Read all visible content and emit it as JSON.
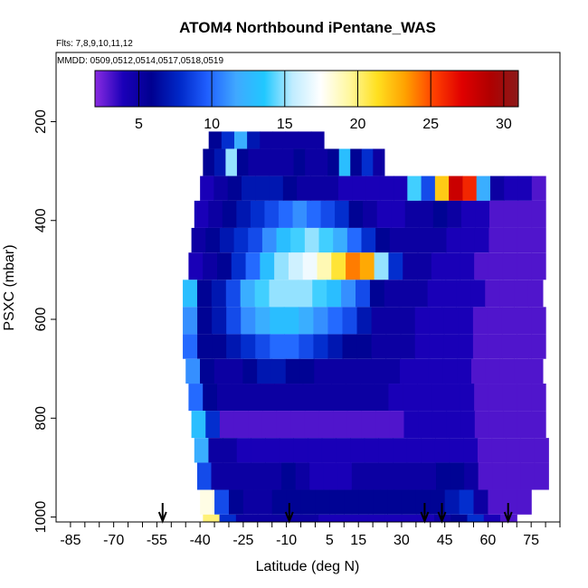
{
  "chart_data": {
    "type": "heatmap",
    "title": "ATOM4 Northbound iPentane_WAS",
    "flights_note": "Flts: 7,8,9,10,11,12",
    "dates_note": "MMDD: 0509,0512,0514,0517,0518,0519",
    "xlabel": "Latitude (deg N)",
    "ylabel": "PSXC (mbar)",
    "xlim": [
      -90,
      85
    ],
    "ylim": [
      1010,
      60
    ],
    "y_reversed": true,
    "x_ticks": [
      -85,
      -70,
      -55,
      -40,
      -25,
      -10,
      5,
      15,
      30,
      45,
      60,
      75
    ],
    "y_ticks": [
      200,
      400,
      600,
      800,
      1000
    ],
    "colorbar": {
      "min": 2,
      "max": 31,
      "ticks": [
        5,
        10,
        15,
        20,
        25,
        30
      ],
      "colors": [
        "#8a2be2",
        "#1a00b8",
        "#000090",
        "#0028c8",
        "#2060ff",
        "#40a8ff",
        "#20c8ff",
        "#c0ecff",
        "#ffffff",
        "#fff8a0",
        "#ffe020",
        "#ffa000",
        "#ff4000",
        "#e00000",
        "#b00000",
        "#8b1a1a"
      ]
    },
    "profile_arrows_lat": [
      -53,
      -9,
      38,
      44,
      67
    ],
    "bands": [
      {
        "p_top": 220,
        "p_bot": 255,
        "start": -37,
        "end": 3,
        "values": [
          6,
          8,
          12,
          7,
          5,
          5,
          5,
          5,
          5
        ]
      },
      {
        "p_top": 255,
        "p_bot": 310,
        "start": -39,
        "end": 24,
        "values": [
          6,
          7,
          15,
          6,
          5,
          5,
          5,
          5,
          6,
          5,
          5,
          6,
          13,
          6,
          8,
          5
        ]
      },
      {
        "p_top": 310,
        "p_bot": 360,
        "start": -40,
        "end": 80,
        "values": [
          4,
          5,
          6,
          7,
          7,
          7,
          6,
          5,
          5,
          5,
          4,
          4,
          4,
          4,
          4,
          14,
          9,
          22,
          28,
          26,
          12,
          5,
          4,
          4,
          3
        ]
      },
      {
        "p_top": 360,
        "p_bot": 415,
        "start": -42,
        "end": 80,
        "values": [
          4,
          5,
          6,
          7,
          8,
          9,
          10,
          11,
          10,
          9,
          8,
          6,
          5,
          4,
          4,
          5,
          5,
          6,
          5,
          4,
          4,
          3,
          3,
          3,
          3
        ]
      },
      {
        "p_top": 415,
        "p_bot": 465,
        "start": -43,
        "end": 80,
        "values": [
          5,
          6,
          7,
          8,
          9,
          11,
          13,
          14,
          15,
          14,
          12,
          10,
          8,
          6,
          5,
          5,
          5,
          5,
          4,
          4,
          4,
          3,
          3,
          3,
          3
        ]
      },
      {
        "p_top": 465,
        "p_bot": 520,
        "start": -44,
        "end": 80,
        "values": [
          4,
          5,
          6,
          8,
          10,
          13,
          15,
          16,
          17,
          19,
          21,
          24,
          23,
          15,
          8,
          5,
          5,
          4,
          4,
          4,
          3,
          3,
          3,
          3,
          3
        ]
      },
      {
        "p_top": 520,
        "p_bot": 575,
        "start": -46,
        "end": 79,
        "values": [
          13,
          6,
          7,
          9,
          12,
          14,
          15,
          15,
          15,
          14,
          13,
          11,
          9,
          6,
          5,
          5,
          5,
          4,
          4,
          4,
          4,
          3,
          3,
          3,
          3
        ]
      },
      {
        "p_top": 575,
        "p_bot": 630,
        "start": -46,
        "end": 80,
        "values": [
          11,
          6,
          7,
          9,
          11,
          12,
          13,
          13,
          12,
          11,
          10,
          9,
          7,
          5,
          5,
          5,
          4,
          4,
          4,
          4,
          3,
          3,
          3,
          3,
          3
        ]
      },
      {
        "p_top": 630,
        "p_bot": 680,
        "start": -46,
        "end": 80,
        "values": [
          10,
          6,
          6,
          7,
          8,
          9,
          10,
          10,
          9,
          8,
          7,
          6,
          6,
          5,
          5,
          5,
          4,
          4,
          4,
          4,
          3,
          3,
          3,
          3,
          3
        ]
      },
      {
        "p_top": 680,
        "p_bot": 730,
        "start": -45,
        "end": 79,
        "values": [
          11,
          6,
          5,
          5,
          6,
          7,
          7,
          6,
          6,
          5,
          5,
          5,
          5,
          5,
          5,
          4,
          4,
          4,
          4,
          4,
          3,
          3,
          3,
          3,
          3
        ]
      },
      {
        "p_top": 730,
        "p_bot": 785,
        "start": -44,
        "end": 80,
        "values": [
          10,
          6,
          5,
          5,
          5,
          5,
          5,
          5,
          5,
          5,
          5,
          5,
          5,
          5,
          4,
          4,
          4,
          4,
          4,
          4,
          3,
          3,
          3,
          3,
          3
        ]
      },
      {
        "p_top": 785,
        "p_bot": 840,
        "start": -43,
        "end": 80,
        "values": [
          13,
          8,
          3,
          3,
          3,
          3,
          3,
          3,
          3,
          3,
          3,
          3,
          3,
          3,
          3,
          4,
          4,
          4,
          4,
          4,
          3,
          3,
          3,
          3,
          3
        ]
      },
      {
        "p_top": 840,
        "p_bot": 890,
        "start": -42,
        "end": 81,
        "values": [
          12,
          5,
          5,
          4,
          4,
          4,
          4,
          4,
          4,
          4,
          4,
          4,
          4,
          4,
          4,
          4,
          4,
          4,
          4,
          4,
          3,
          3,
          3,
          3,
          3
        ]
      },
      {
        "p_top": 890,
        "p_bot": 945,
        "start": -41,
        "end": 81,
        "values": [
          9,
          5,
          5,
          5,
          5,
          5,
          6,
          5,
          4,
          4,
          4,
          5,
          5,
          5,
          5,
          5,
          5,
          6,
          6,
          5,
          3,
          3,
          3,
          3,
          3
        ]
      },
      {
        "p_top": 945,
        "p_bot": 995,
        "start": -40,
        "end": 75,
        "values": [
          18,
          9,
          6,
          5,
          5,
          6,
          6,
          6,
          6,
          6,
          6,
          6,
          6,
          6,
          6,
          6,
          6,
          7,
          8,
          5,
          3,
          3,
          3
        ]
      },
      {
        "p_top": 995,
        "p_bot": 1010,
        "start": -39,
        "end": 70,
        "values": [
          20,
          8,
          5,
          5,
          5,
          5,
          5,
          4,
          4,
          4,
          4,
          4,
          4,
          4,
          5,
          6,
          8,
          4,
          3
        ]
      }
    ]
  }
}
